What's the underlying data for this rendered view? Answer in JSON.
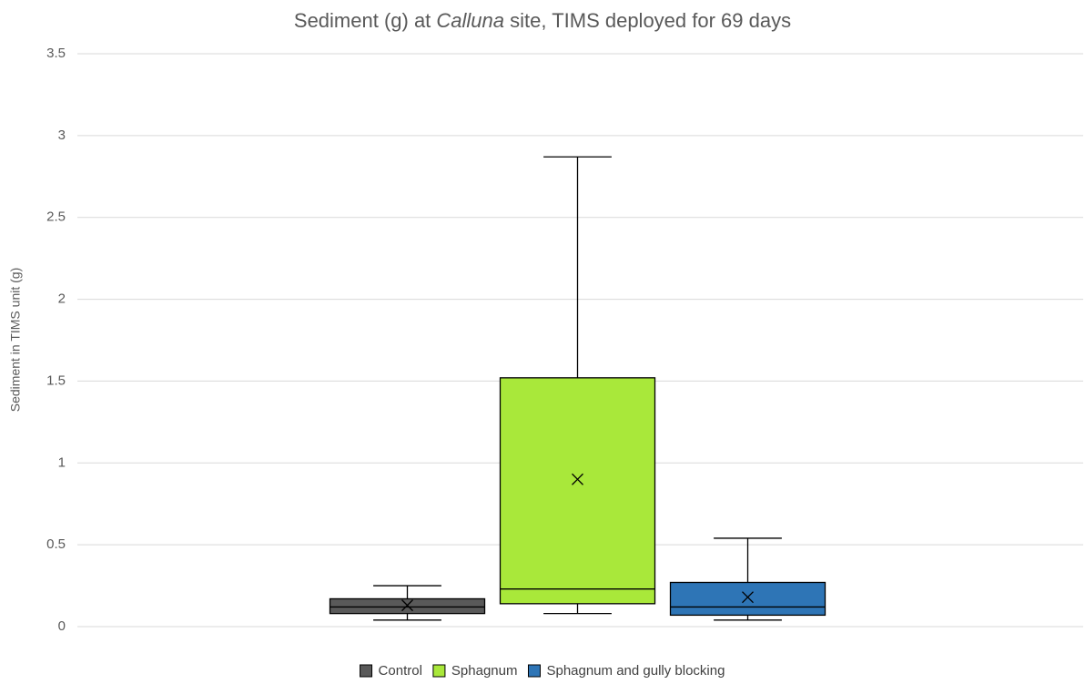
{
  "chart_data": {
    "type": "box",
    "title_parts": [
      {
        "text": "Sediment (g) at "
      },
      {
        "text": "Calluna",
        "style": "italic"
      },
      {
        "text": " site, TIMS deployed for 69 days"
      }
    ],
    "ylabel": "Sediment in TIMS unit (g)",
    "ylim": [
      0,
      3.5
    ],
    "yticks": [
      0,
      0.5,
      1,
      1.5,
      2,
      2.5,
      3,
      3.5
    ],
    "grid": true,
    "legend": "bottom",
    "series": [
      {
        "name": "Control",
        "color": "#595959",
        "min": 0.04,
        "q1": 0.08,
        "median": 0.12,
        "q3": 0.17,
        "max": 0.25,
        "mean": 0.13
      },
      {
        "name": "Sphagnum",
        "color": "#a9e83a",
        "min": 0.08,
        "q1": 0.14,
        "median": 0.23,
        "q3": 1.52,
        "max": 2.87,
        "mean": 0.9
      },
      {
        "name": "Sphagnum and gully blocking",
        "color": "#2e75b6",
        "min": 0.04,
        "q1": 0.07,
        "median": 0.12,
        "q3": 0.27,
        "max": 0.54,
        "mean": 0.18
      }
    ]
  }
}
